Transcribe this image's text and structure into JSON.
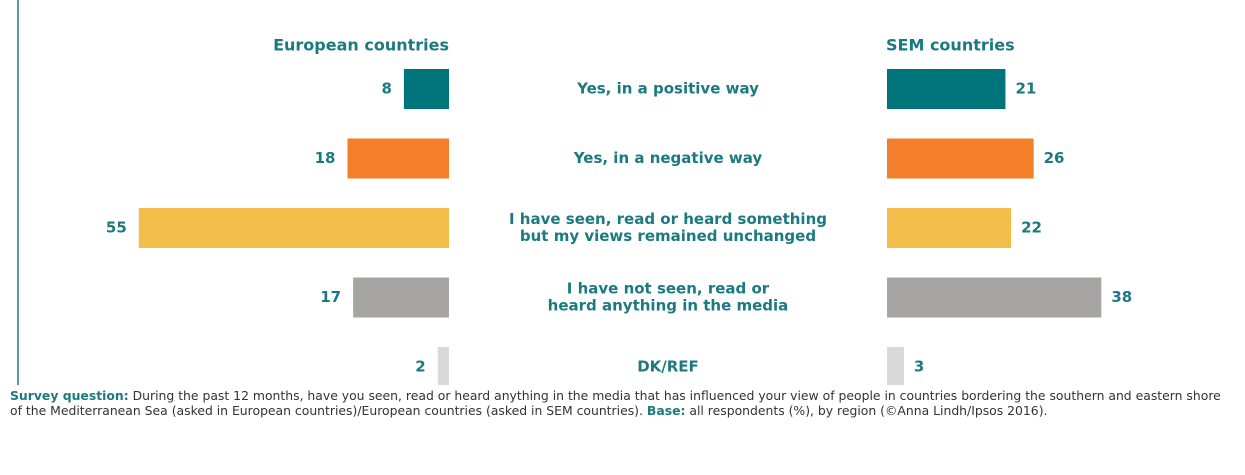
{
  "chart_data": {
    "type": "butterfly_bar",
    "categories": [
      [
        "Yes, in a positive way"
      ],
      [
        "Yes, in a negative way"
      ],
      [
        "I have seen, read or heard something",
        "but my views remained unchanged"
      ],
      [
        "I have not seen, read or",
        "heard anything in the media"
      ],
      [
        "DK/REF"
      ]
    ],
    "colors": [
      "#00747b",
      "#f47f2b",
      "#f2bd4a",
      "#a6a5a3",
      "#d9d9d9"
    ],
    "series": [
      {
        "name": "European countries",
        "values": [
          8,
          18,
          55,
          17,
          2
        ]
      },
      {
        "name": "SEM countries",
        "values": [
          21,
          26,
          22,
          38,
          3
        ]
      }
    ]
  },
  "footnote": [
    {
      "label": "Survey question:",
      "text": "During the past 12 months, have you seen, read or heard anything in the media that has influenced your view of people in countries bordering the southern and eastern shore of the Mediterranean Sea (asked in European countries)/European countries (asked in SEM countries)."
    },
    {
      "label": "Base:",
      "text": "all respondents (%), by region (©Anna Lindh/Ipsos 2016)."
    }
  ]
}
